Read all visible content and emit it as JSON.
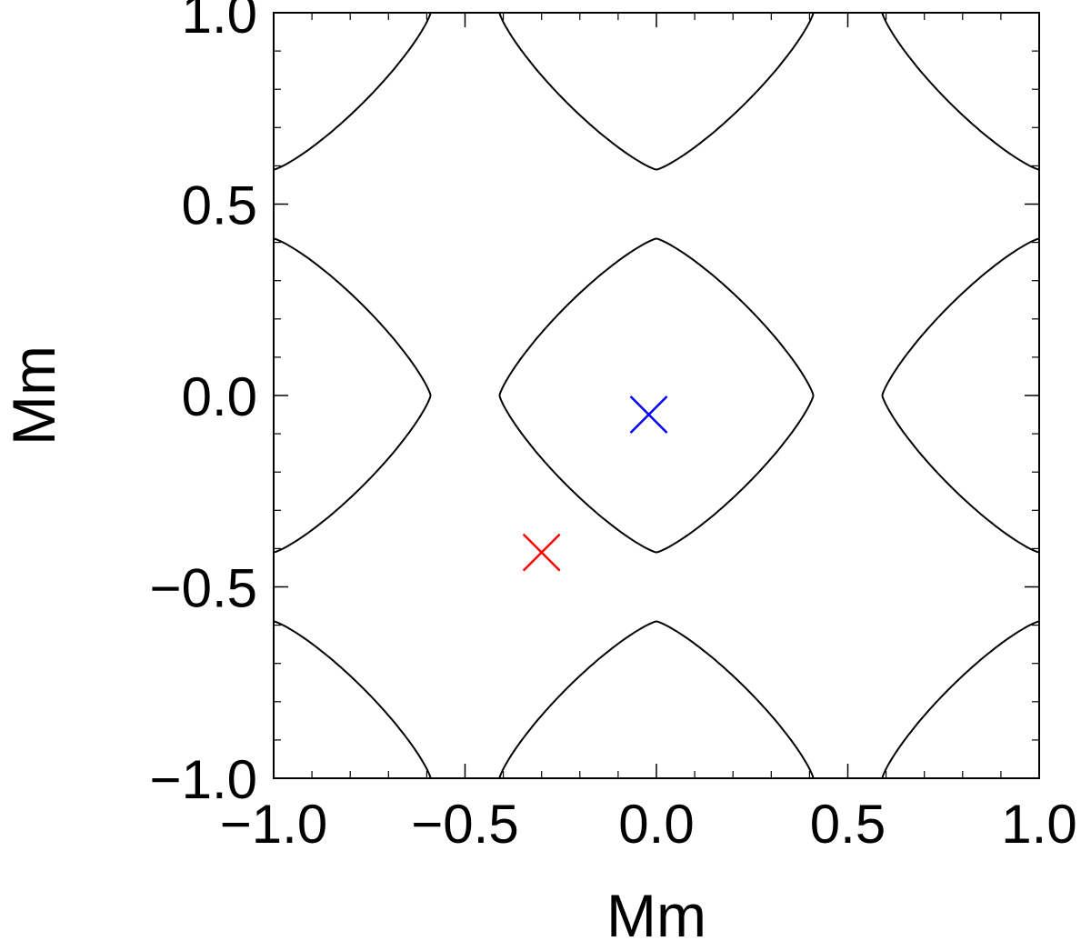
{
  "chart_data": {
    "type": "contour",
    "xlabel": "Mm",
    "ylabel": "Mm",
    "xlim": [
      -1.0,
      1.0
    ],
    "ylim": [
      -1.0,
      1.0
    ],
    "xticks": [
      -1.0,
      -0.5,
      0.0,
      0.5,
      1.0
    ],
    "xtick_labels": [
      "−1.0",
      "−0.5",
      "0.0",
      "0.5",
      "1.0"
    ],
    "yticks": [
      -1.0,
      -0.5,
      0.0,
      0.5,
      1.0
    ],
    "ytick_labels": [
      "−1.0",
      "−0.5",
      "0.0",
      "0.5",
      "1.0"
    ],
    "minor_tick_step": 0.1,
    "grid": false,
    "contour": {
      "description_level": "single contour level of periodic field",
      "period": 1.0,
      "crossings": [
        {
          "axis": "x",
          "at_y": 0.0,
          "values": [
            -0.6,
            -0.4,
            0.4,
            0.6
          ]
        },
        {
          "axis": "y",
          "at_x": 0.0,
          "values": [
            -0.6,
            -0.4,
            0.4,
            0.6
          ]
        }
      ],
      "color": "#000000"
    },
    "markers": [
      {
        "x": -0.02,
        "y": -0.05,
        "symbol": "x",
        "color": "#0000ff"
      },
      {
        "x": -0.3,
        "y": -0.41,
        "symbol": "x",
        "color": "#ff0000"
      }
    ]
  }
}
